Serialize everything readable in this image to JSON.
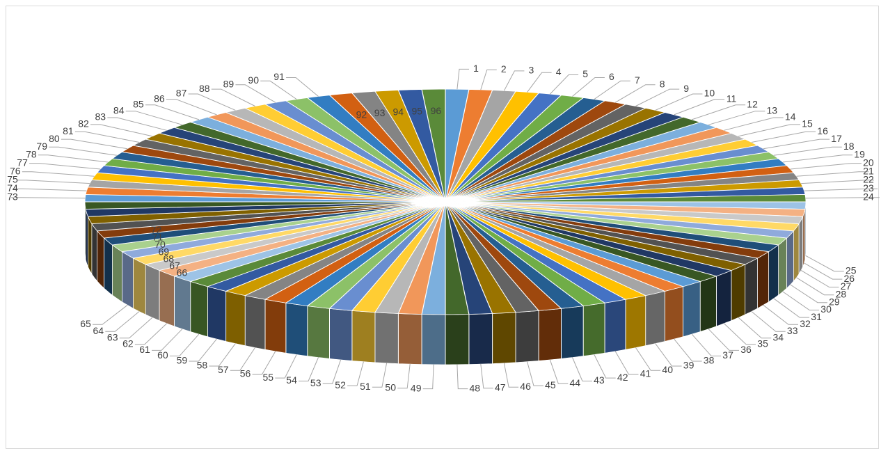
{
  "chart_data": {
    "type": "pie",
    "style": "3d-exploded",
    "title": "",
    "categories": [
      "1",
      "2",
      "3",
      "4",
      "5",
      "6",
      "7",
      "8",
      "9",
      "10",
      "11",
      "12",
      "13",
      "14",
      "15",
      "16",
      "17",
      "18",
      "19",
      "20",
      "21",
      "22",
      "23",
      "24",
      "25",
      "26",
      "27",
      "28",
      "29",
      "30",
      "31",
      "32",
      "33",
      "34",
      "35",
      "36",
      "37",
      "38",
      "39",
      "40",
      "41",
      "42",
      "43",
      "44",
      "45",
      "46",
      "47",
      "48",
      "49",
      "50",
      "51",
      "52",
      "53",
      "54",
      "55",
      "56",
      "57",
      "58",
      "59",
      "60",
      "61",
      "62",
      "63",
      "64",
      "65",
      "66",
      "67",
      "68",
      "69",
      "70",
      "71",
      "72",
      "73",
      "74",
      "75",
      "76",
      "77",
      "78",
      "79",
      "80",
      "81",
      "82",
      "83",
      "84",
      "85",
      "86",
      "87",
      "88",
      "89",
      "90",
      "91",
      "92",
      "93",
      "94",
      "95",
      "96"
    ],
    "values": [
      0.2,
      0.2,
      0.2,
      0.2,
      0.2,
      0.2,
      0.2,
      0.2,
      0.2,
      0.2,
      0.2,
      0.2,
      0.2,
      0.2,
      0.2,
      0.2,
      0.2,
      0.2,
      0.2,
      0.2,
      0.2,
      0.2,
      0.2,
      0.2,
      0.2,
      0.2,
      0.2,
      0.2,
      0.2,
      0.2,
      0.2,
      0.2,
      0.2,
      0.2,
      0.2,
      0.2,
      0.2,
      0.2,
      0.2,
      0.2,
      0.2,
      0.2,
      0.2,
      0.2,
      0.2,
      0.2,
      0.2,
      0.2,
      0.2,
      0.2,
      0.2,
      0.2,
      0.2,
      0.2,
      0.2,
      0.2,
      0.2,
      0.2,
      0.2,
      0.2,
      0.2,
      0.2,
      0.2,
      0.2,
      0.2,
      0.2,
      0.2,
      0.2,
      0.2,
      0.2,
      0.2,
      0.2,
      0.2,
      0.2,
      0.2,
      0.2,
      0.2,
      0.2,
      0.2,
      0.2,
      0.2,
      0.2,
      0.2,
      0.2,
      0.2,
      0.2,
      0.2,
      0.2,
      0.2,
      0.2,
      0.2,
      0.2,
      0.2,
      0.2,
      0.2,
      0.2
    ],
    "legend": "none",
    "palette": [
      "#5b9bd5",
      "#ed7d31",
      "#a5a5a5",
      "#ffc000",
      "#4472c4",
      "#70ad47",
      "#255e91",
      "#9e480e",
      "#636363",
      "#997300",
      "#264478",
      "#43682b",
      "#7cafdd",
      "#f1975a",
      "#b7b7b7",
      "#ffcd33",
      "#698ed0",
      "#8cc168",
      "#327dc2",
      "#d26012",
      "#848484",
      "#cc9a00",
      "#335aa1",
      "#5a8a39",
      "#9dc3e6",
      "#f4b183",
      "#c9c9c9",
      "#ffd966",
      "#8faadc",
      "#a9d18e",
      "#1f4e79",
      "#843c0c",
      "#525252",
      "#7f6000",
      "#203864",
      "#385723"
    ]
  }
}
